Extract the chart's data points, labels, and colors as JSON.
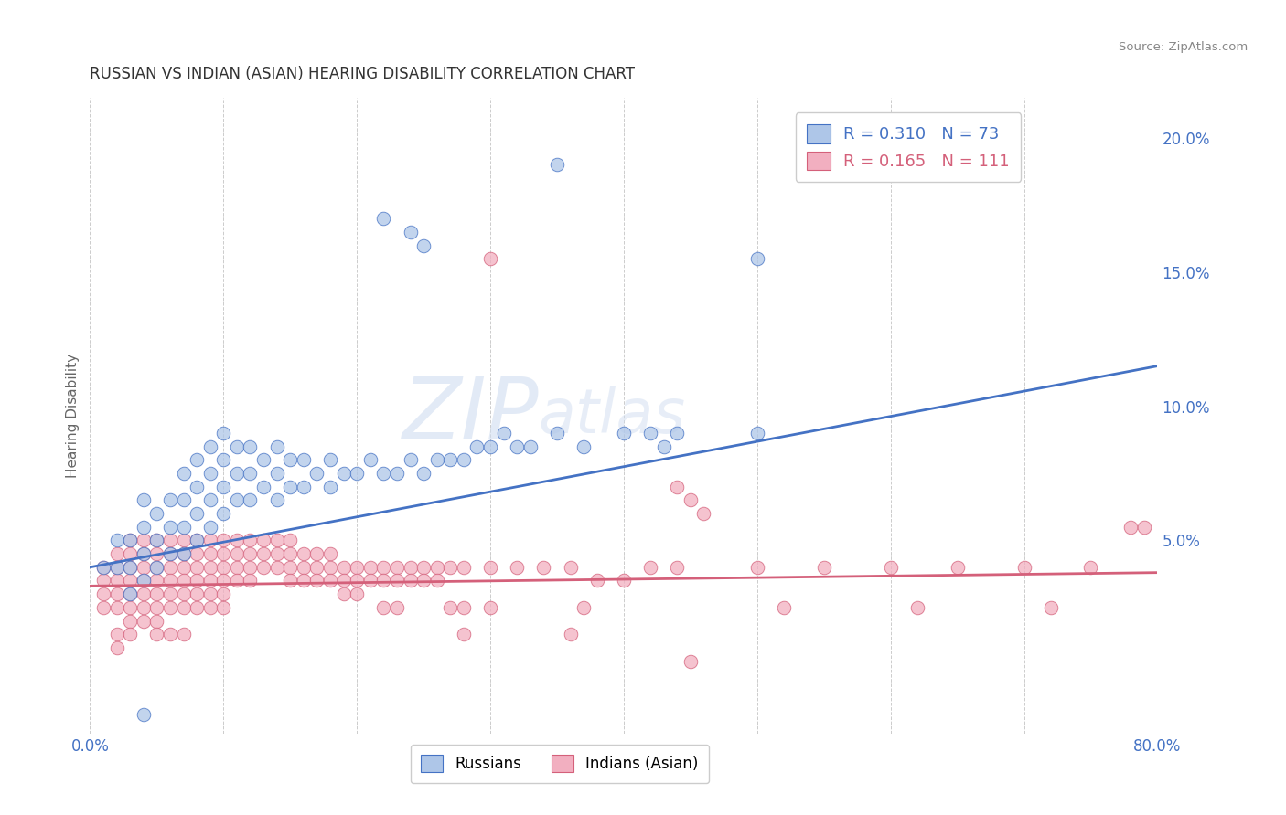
{
  "title": "RUSSIAN VS INDIAN (ASIAN) HEARING DISABILITY CORRELATION CHART",
  "source": "Source: ZipAtlas.com",
  "ylabel": "Hearing Disability",
  "xlim": [
    0.0,
    0.8
  ],
  "ylim": [
    -0.022,
    0.215
  ],
  "xticks": [
    0.0,
    0.1,
    0.2,
    0.3,
    0.4,
    0.5,
    0.6,
    0.7,
    0.8
  ],
  "xticklabels": [
    "0.0%",
    "",
    "",
    "",
    "",
    "",
    "",
    "",
    "80.0%"
  ],
  "yticks": [
    0.0,
    0.05,
    0.1,
    0.15,
    0.2
  ],
  "yticklabels": [
    "",
    "5.0%",
    "10.0%",
    "15.0%",
    "20.0%"
  ],
  "russian_R": 0.31,
  "russian_N": 73,
  "indian_R": 0.165,
  "indian_N": 111,
  "russian_color": "#aec6e8",
  "indian_color": "#f2afc0",
  "russian_line_color": "#4472c4",
  "indian_line_color": "#d4607a",
  "watermark_zip": "ZIP",
  "watermark_atlas": "atlas",
  "background_color": "#ffffff",
  "grid_color": "#cccccc",
  "legend_fontsize": 13,
  "title_fontsize": 12,
  "russians_label": "Russians",
  "indians_label": "Indians (Asian)",
  "russian_scatter": [
    [
      0.01,
      0.04
    ],
    [
      0.02,
      0.04
    ],
    [
      0.02,
      0.05
    ],
    [
      0.03,
      0.03
    ],
    [
      0.03,
      0.04
    ],
    [
      0.03,
      0.05
    ],
    [
      0.04,
      0.035
    ],
    [
      0.04,
      0.045
    ],
    [
      0.04,
      0.055
    ],
    [
      0.04,
      0.065
    ],
    [
      0.05,
      0.04
    ],
    [
      0.05,
      0.05
    ],
    [
      0.05,
      0.06
    ],
    [
      0.06,
      0.045
    ],
    [
      0.06,
      0.055
    ],
    [
      0.06,
      0.065
    ],
    [
      0.07,
      0.045
    ],
    [
      0.07,
      0.055
    ],
    [
      0.07,
      0.065
    ],
    [
      0.07,
      0.075
    ],
    [
      0.08,
      0.05
    ],
    [
      0.08,
      0.06
    ],
    [
      0.08,
      0.07
    ],
    [
      0.08,
      0.08
    ],
    [
      0.09,
      0.055
    ],
    [
      0.09,
      0.065
    ],
    [
      0.09,
      0.075
    ],
    [
      0.09,
      0.085
    ],
    [
      0.1,
      0.06
    ],
    [
      0.1,
      0.07
    ],
    [
      0.1,
      0.08
    ],
    [
      0.1,
      0.09
    ],
    [
      0.11,
      0.065
    ],
    [
      0.11,
      0.075
    ],
    [
      0.11,
      0.085
    ],
    [
      0.12,
      0.065
    ],
    [
      0.12,
      0.075
    ],
    [
      0.12,
      0.085
    ],
    [
      0.13,
      0.07
    ],
    [
      0.13,
      0.08
    ],
    [
      0.14,
      0.065
    ],
    [
      0.14,
      0.075
    ],
    [
      0.14,
      0.085
    ],
    [
      0.15,
      0.07
    ],
    [
      0.15,
      0.08
    ],
    [
      0.16,
      0.07
    ],
    [
      0.16,
      0.08
    ],
    [
      0.17,
      0.075
    ],
    [
      0.18,
      0.07
    ],
    [
      0.18,
      0.08
    ],
    [
      0.19,
      0.075
    ],
    [
      0.2,
      0.075
    ],
    [
      0.21,
      0.08
    ],
    [
      0.22,
      0.075
    ],
    [
      0.23,
      0.075
    ],
    [
      0.24,
      0.08
    ],
    [
      0.25,
      0.075
    ],
    [
      0.26,
      0.08
    ],
    [
      0.27,
      0.08
    ],
    [
      0.28,
      0.08
    ],
    [
      0.29,
      0.085
    ],
    [
      0.3,
      0.085
    ],
    [
      0.31,
      0.09
    ],
    [
      0.32,
      0.085
    ],
    [
      0.33,
      0.085
    ],
    [
      0.35,
      0.09
    ],
    [
      0.37,
      0.085
    ],
    [
      0.4,
      0.09
    ],
    [
      0.42,
      0.09
    ],
    [
      0.43,
      0.085
    ],
    [
      0.44,
      0.09
    ],
    [
      0.5,
      0.09
    ],
    [
      0.22,
      0.17
    ],
    [
      0.24,
      0.165
    ],
    [
      0.25,
      0.16
    ],
    [
      0.35,
      0.19
    ],
    [
      0.5,
      0.155
    ],
    [
      0.04,
      -0.015
    ]
  ],
  "indian_scatter": [
    [
      0.01,
      0.04
    ],
    [
      0.01,
      0.035
    ],
    [
      0.01,
      0.03
    ],
    [
      0.01,
      0.025
    ],
    [
      0.02,
      0.045
    ],
    [
      0.02,
      0.04
    ],
    [
      0.02,
      0.035
    ],
    [
      0.02,
      0.03
    ],
    [
      0.02,
      0.025
    ],
    [
      0.02,
      0.015
    ],
    [
      0.02,
      0.01
    ],
    [
      0.03,
      0.05
    ],
    [
      0.03,
      0.045
    ],
    [
      0.03,
      0.04
    ],
    [
      0.03,
      0.035
    ],
    [
      0.03,
      0.03
    ],
    [
      0.03,
      0.025
    ],
    [
      0.03,
      0.02
    ],
    [
      0.03,
      0.015
    ],
    [
      0.04,
      0.05
    ],
    [
      0.04,
      0.045
    ],
    [
      0.04,
      0.04
    ],
    [
      0.04,
      0.035
    ],
    [
      0.04,
      0.03
    ],
    [
      0.04,
      0.025
    ],
    [
      0.04,
      0.02
    ],
    [
      0.05,
      0.05
    ],
    [
      0.05,
      0.045
    ],
    [
      0.05,
      0.04
    ],
    [
      0.05,
      0.035
    ],
    [
      0.05,
      0.03
    ],
    [
      0.05,
      0.025
    ],
    [
      0.05,
      0.02
    ],
    [
      0.05,
      0.015
    ],
    [
      0.06,
      0.05
    ],
    [
      0.06,
      0.045
    ],
    [
      0.06,
      0.04
    ],
    [
      0.06,
      0.035
    ],
    [
      0.06,
      0.03
    ],
    [
      0.06,
      0.025
    ],
    [
      0.06,
      0.015
    ],
    [
      0.07,
      0.05
    ],
    [
      0.07,
      0.045
    ],
    [
      0.07,
      0.04
    ],
    [
      0.07,
      0.035
    ],
    [
      0.07,
      0.03
    ],
    [
      0.07,
      0.025
    ],
    [
      0.07,
      0.015
    ],
    [
      0.08,
      0.05
    ],
    [
      0.08,
      0.045
    ],
    [
      0.08,
      0.04
    ],
    [
      0.08,
      0.035
    ],
    [
      0.08,
      0.03
    ],
    [
      0.08,
      0.025
    ],
    [
      0.09,
      0.05
    ],
    [
      0.09,
      0.045
    ],
    [
      0.09,
      0.04
    ],
    [
      0.09,
      0.035
    ],
    [
      0.09,
      0.03
    ],
    [
      0.09,
      0.025
    ],
    [
      0.1,
      0.05
    ],
    [
      0.1,
      0.045
    ],
    [
      0.1,
      0.04
    ],
    [
      0.1,
      0.035
    ],
    [
      0.1,
      0.03
    ],
    [
      0.1,
      0.025
    ],
    [
      0.11,
      0.05
    ],
    [
      0.11,
      0.045
    ],
    [
      0.11,
      0.04
    ],
    [
      0.11,
      0.035
    ],
    [
      0.12,
      0.05
    ],
    [
      0.12,
      0.045
    ],
    [
      0.12,
      0.04
    ],
    [
      0.12,
      0.035
    ],
    [
      0.13,
      0.05
    ],
    [
      0.13,
      0.045
    ],
    [
      0.13,
      0.04
    ],
    [
      0.14,
      0.05
    ],
    [
      0.14,
      0.045
    ],
    [
      0.14,
      0.04
    ],
    [
      0.15,
      0.05
    ],
    [
      0.15,
      0.045
    ],
    [
      0.15,
      0.04
    ],
    [
      0.15,
      0.035
    ],
    [
      0.16,
      0.045
    ],
    [
      0.16,
      0.04
    ],
    [
      0.16,
      0.035
    ],
    [
      0.17,
      0.045
    ],
    [
      0.17,
      0.04
    ],
    [
      0.17,
      0.035
    ],
    [
      0.18,
      0.045
    ],
    [
      0.18,
      0.04
    ],
    [
      0.18,
      0.035
    ],
    [
      0.19,
      0.04
    ],
    [
      0.19,
      0.035
    ],
    [
      0.19,
      0.03
    ],
    [
      0.2,
      0.04
    ],
    [
      0.2,
      0.035
    ],
    [
      0.2,
      0.03
    ],
    [
      0.21,
      0.04
    ],
    [
      0.21,
      0.035
    ],
    [
      0.22,
      0.04
    ],
    [
      0.22,
      0.035
    ],
    [
      0.22,
      0.025
    ],
    [
      0.23,
      0.04
    ],
    [
      0.23,
      0.035
    ],
    [
      0.23,
      0.025
    ],
    [
      0.24,
      0.04
    ],
    [
      0.24,
      0.035
    ],
    [
      0.25,
      0.04
    ],
    [
      0.25,
      0.035
    ],
    [
      0.26,
      0.04
    ],
    [
      0.26,
      0.035
    ],
    [
      0.27,
      0.04
    ],
    [
      0.27,
      0.025
    ],
    [
      0.28,
      0.04
    ],
    [
      0.28,
      0.025
    ],
    [
      0.3,
      0.04
    ],
    [
      0.3,
      0.025
    ],
    [
      0.32,
      0.04
    ],
    [
      0.34,
      0.04
    ],
    [
      0.36,
      0.04
    ],
    [
      0.37,
      0.025
    ],
    [
      0.38,
      0.035
    ],
    [
      0.4,
      0.035
    ],
    [
      0.42,
      0.04
    ],
    [
      0.44,
      0.04
    ],
    [
      0.45,
      0.065
    ],
    [
      0.46,
      0.06
    ],
    [
      0.5,
      0.04
    ],
    [
      0.52,
      0.025
    ],
    [
      0.55,
      0.04
    ],
    [
      0.6,
      0.04
    ],
    [
      0.62,
      0.025
    ],
    [
      0.65,
      0.04
    ],
    [
      0.7,
      0.04
    ],
    [
      0.72,
      0.025
    ],
    [
      0.75,
      0.04
    ],
    [
      0.78,
      0.055
    ],
    [
      0.79,
      0.055
    ],
    [
      0.36,
      0.015
    ],
    [
      0.28,
      0.015
    ],
    [
      0.3,
      0.155
    ],
    [
      0.45,
      0.005
    ],
    [
      0.44,
      0.07
    ]
  ],
  "russian_trendline": [
    [
      0.0,
      0.04
    ],
    [
      0.8,
      0.115
    ]
  ],
  "indian_trendline": [
    [
      0.0,
      0.033
    ],
    [
      0.8,
      0.038
    ]
  ]
}
